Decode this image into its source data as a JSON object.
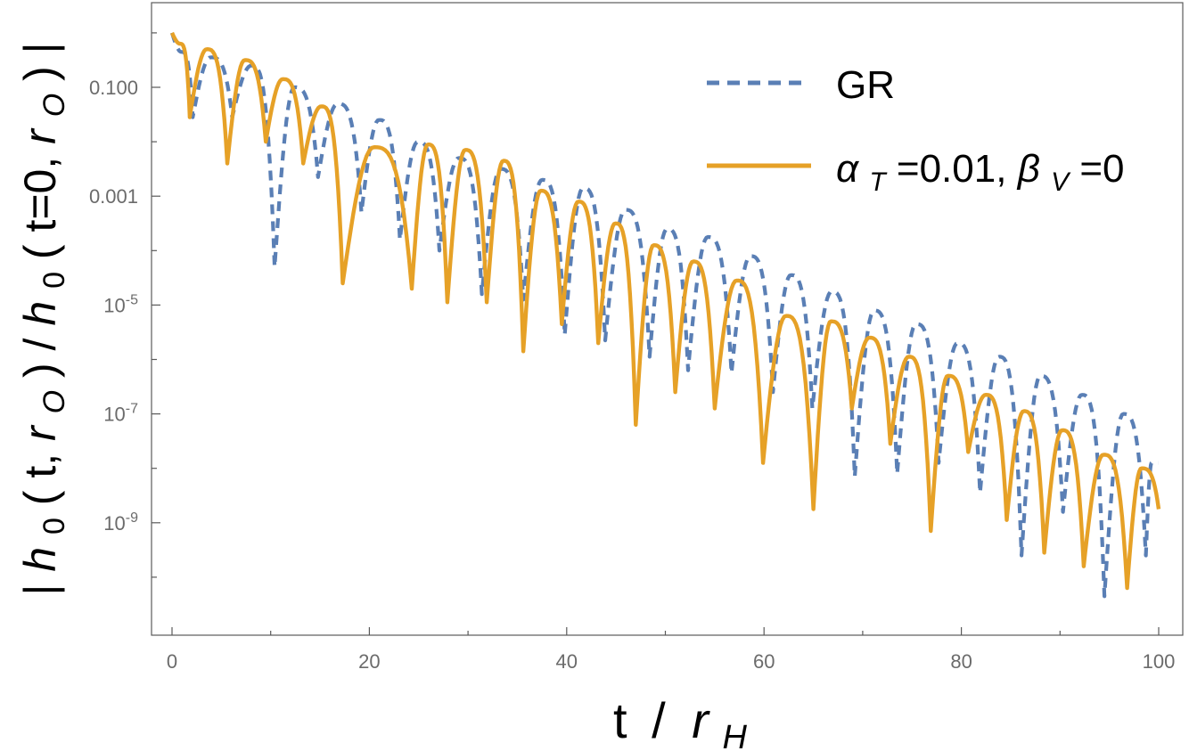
{
  "chart_data": {
    "type": "line",
    "title": "",
    "xlabel": "t / r_H",
    "xlabel_parts": {
      "t": "t",
      "sep": "/",
      "r": "r",
      "sub": "H"
    },
    "ylabel": "|h0(t,rO)/h0(t=0,rO)|",
    "ylabel_parts": {
      "bar": "|",
      "h": "h",
      "zero": "0",
      "open": "(",
      "t_comma": "t,",
      "r": "r",
      "o_sub": "O",
      "close": ")",
      "slash": "/",
      "t_eq": "t=0,",
      "bar_end": "|"
    },
    "xlim": [
      0,
      100
    ],
    "ylim_log10": [
      -10.8,
      0.45
    ],
    "yscale": "log",
    "x_ticks": [
      {
        "value": 0,
        "label": "0"
      },
      {
        "value": 20,
        "label": "20"
      },
      {
        "value": 40,
        "label": "40"
      },
      {
        "value": 60,
        "label": "60"
      },
      {
        "value": 80,
        "label": "80"
      },
      {
        "value": 100,
        "label": "100"
      }
    ],
    "y_ticks": [
      {
        "log10": -1,
        "label": "0.100",
        "kind": "plain"
      },
      {
        "log10": -3,
        "label": "0.001",
        "kind": "plain"
      },
      {
        "log10": -5,
        "base": "10",
        "exp": "-5",
        "kind": "pow"
      },
      {
        "log10": -7,
        "base": "10",
        "exp": "-7",
        "kind": "pow"
      },
      {
        "log10": -9,
        "base": "10",
        "exp": "-9",
        "kind": "pow"
      }
    ],
    "y_minor_ticks_log10": [
      0,
      -2,
      -4,
      -6,
      -8,
      -10
    ],
    "legend": {
      "position": "top-right",
      "entries": [
        {
          "series": "GR",
          "label": "GR"
        },
        {
          "series": "alpha",
          "label_parts": {
            "alpha": "α",
            "alpha_sub": "T",
            "alpha_val": "=0.01,",
            "beta": "β",
            "beta_sub": "V",
            "beta_val": "=0"
          }
        }
      ]
    },
    "series": [
      {
        "name": "GR",
        "color": "#5a7fb5",
        "style": "dashed",
        "start": [
          0,
          0
        ],
        "lobes": [
          {
            "to": 2.1,
            "peak": -0.35,
            "dip": -1.55
          },
          {
            "to": 6.1,
            "peak": -0.45,
            "dip": -1.55
          },
          {
            "to": 10.4,
            "peak": -0.6,
            "dip": -4.3
          },
          {
            "to": 14.8,
            "peak": -1.0,
            "dip": -2.65
          },
          {
            "to": 19.2,
            "peak": -1.3,
            "dip": -3.3
          },
          {
            "to": 23.1,
            "peak": -1.6,
            "dip": -3.8
          },
          {
            "to": 27.1,
            "peak": -2.0,
            "dip": -4.0
          },
          {
            "to": 31.4,
            "peak": -2.3,
            "dip": -4.8
          },
          {
            "to": 35.6,
            "peak": -2.5,
            "dip": -4.9
          },
          {
            "to": 39.8,
            "peak": -2.7,
            "dip": -5.55
          },
          {
            "to": 43.9,
            "peak": -2.85,
            "dip": -5.65
          },
          {
            "to": 48.4,
            "peak": -3.25,
            "dip": -5.95
          },
          {
            "to": 52.3,
            "peak": -3.6,
            "dip": -6.2
          },
          {
            "to": 56.7,
            "peak": -3.75,
            "dip": -6.25
          },
          {
            "to": 60.9,
            "peak": -4.1,
            "dip": -6.6
          },
          {
            "to": 64.9,
            "peak": -4.45,
            "dip": -6.9
          },
          {
            "to": 69.2,
            "peak": -4.75,
            "dip": -8.15
          },
          {
            "to": 73.5,
            "peak": -5.1,
            "dip": -8.1
          },
          {
            "to": 77.7,
            "peak": -5.35,
            "dip": -7.9
          },
          {
            "to": 81.9,
            "peak": -5.7,
            "dip": -8.45
          },
          {
            "to": 86.1,
            "peak": -5.95,
            "dip": -9.6
          },
          {
            "to": 90.3,
            "peak": -6.3,
            "dip": -8.8
          },
          {
            "to": 94.5,
            "peak": -6.65,
            "dip": -10.35
          },
          {
            "to": 98.7,
            "peak": -7.0,
            "dip": -9.6
          },
          {
            "to": 100.0,
            "peak": -7.9,
            "dip": -7.9
          }
        ]
      },
      {
        "name": "alpha",
        "color": "#e6a127",
        "style": "solid",
        "start": [
          0,
          0
        ],
        "lobes": [
          {
            "to": 1.8,
            "peak": -0.2,
            "dip": -1.55
          },
          {
            "to": 5.6,
            "peak": -0.3,
            "dip": -2.4
          },
          {
            "to": 9.5,
            "peak": -0.5,
            "dip": -2.0
          },
          {
            "to": 13.3,
            "peak": -0.85,
            "dip": -2.4
          },
          {
            "to": 17.3,
            "peak": -1.35,
            "dip": -4.6
          },
          {
            "to": 24.3,
            "peak": -2.1,
            "dip": -4.7
          },
          {
            "to": 27.9,
            "peak": -2.05,
            "dip": -4.95
          },
          {
            "to": 31.9,
            "peak": -2.15,
            "dip": -4.95
          },
          {
            "to": 35.6,
            "peak": -2.35,
            "dip": -5.85
          },
          {
            "to": 39.5,
            "peak": -2.9,
            "dip": -5.35
          },
          {
            "to": 43.2,
            "peak": -3.1,
            "dip": -5.7
          },
          {
            "to": 47.0,
            "peak": -3.5,
            "dip": -7.2
          },
          {
            "to": 51.0,
            "peak": -3.9,
            "dip": -6.6
          },
          {
            "to": 55.0,
            "peak": -4.2,
            "dip": -6.9
          },
          {
            "to": 59.9,
            "peak": -4.55,
            "dip": -7.9
          },
          {
            "to": 65.0,
            "peak": -5.2,
            "dip": -8.75
          },
          {
            "to": 68.9,
            "peak": -5.3,
            "dip": -6.9
          },
          {
            "to": 72.8,
            "peak": -5.6,
            "dip": -7.55
          },
          {
            "to": 76.9,
            "peak": -5.95,
            "dip": -9.15
          },
          {
            "to": 80.7,
            "peak": -6.3,
            "dip": -7.7
          },
          {
            "to": 84.6,
            "peak": -6.65,
            "dip": -8.95
          },
          {
            "to": 88.4,
            "peak": -6.95,
            "dip": -9.55
          },
          {
            "to": 92.4,
            "peak": -7.3,
            "dip": -9.8
          },
          {
            "to": 96.8,
            "peak": -7.75,
            "dip": -10.2
          },
          {
            "to": 100.0,
            "peak": -8.0,
            "dip": -8.75
          }
        ]
      }
    ]
  }
}
